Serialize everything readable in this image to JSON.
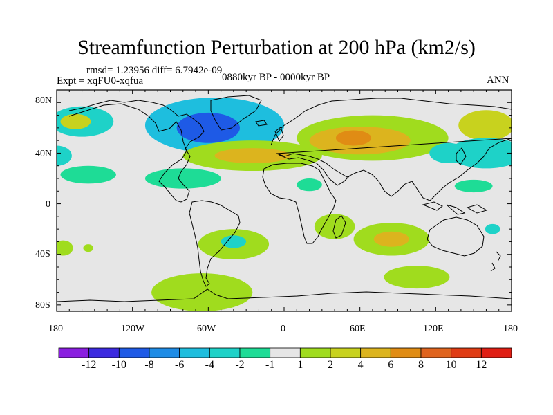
{
  "title": "Streamfunction Perturbation at 200 hPa (km2/s)",
  "stats": "rmsd= 1.23956 diff= 6.7942e-09",
  "experiment": "Expt = xqFU0-xqfua",
  "period": "0880kyr BP - 0000kyr BP",
  "season": "ANN",
  "lat_ticks": [
    "80N",
    "40N",
    "0",
    "40S",
    "80S"
  ],
  "lon_ticks": [
    "180",
    "120W",
    "60W",
    "0",
    "60E",
    "120E",
    "180"
  ],
  "colorbar": {
    "labels": [
      "-12",
      "-10",
      "-8",
      "-6",
      "-4",
      "-2",
      "-1",
      "1",
      "2",
      "4",
      "6",
      "8",
      "10",
      "12"
    ],
    "colors": [
      "#8a1ee0",
      "#3c2ae0",
      "#1e5ae6",
      "#1e8ce6",
      "#1ebede",
      "#1ed2c8",
      "#1edc96",
      "#e6e6e6",
      "#a0dc1e",
      "#c8d21e",
      "#dcb41e",
      "#e08c14",
      "#e0641e",
      "#e03c14",
      "#e01e14"
    ]
  },
  "anomaly_fields": [
    {
      "name": "greenland-north-atlantic-low",
      "lon": -55,
      "lat": 62,
      "rlon": 55,
      "rlat": 22,
      "level": -3
    },
    {
      "name": "greenland-core",
      "lon": -60,
      "lat": 60,
      "rlon": 25,
      "rlat": 12,
      "level": -5
    },
    {
      "name": "alaska-low",
      "lon": -160,
      "lat": 65,
      "rlon": 25,
      "rlat": 12,
      "level": -2
    },
    {
      "name": "alaska-core",
      "lon": -165,
      "lat": 65,
      "rlon": 12,
      "rlat": 6,
      "level": 2
    },
    {
      "name": "atlantic-high",
      "lon": -25,
      "lat": 38,
      "rlon": 55,
      "rlat": 12,
      "level": 1
    },
    {
      "name": "atlantic-high-core",
      "lon": -25,
      "lat": 38,
      "rlon": 30,
      "rlat": 6,
      "level": 3
    },
    {
      "name": "eurasia-high",
      "lon": 70,
      "lat": 52,
      "rlon": 60,
      "rlat": 18,
      "level": 1
    },
    {
      "name": "eurasia-high-mid",
      "lon": 60,
      "lat": 50,
      "rlon": 40,
      "rlat": 11,
      "level": 3
    },
    {
      "name": "eurasia-high-core",
      "lon": 55,
      "lat": 52,
      "rlon": 14,
      "rlat": 6,
      "level": 4
    },
    {
      "name": "east-siberia-high",
      "lon": 160,
      "lat": 62,
      "rlon": 22,
      "rlat": 12,
      "level": 2
    },
    {
      "name": "pacific-low",
      "lon": 160,
      "lat": 40,
      "rlon": 30,
      "rlat": 12,
      "level": -2
    },
    {
      "name": "west-pacific-low",
      "lon": 130,
      "lat": 40,
      "rlon": 15,
      "rlat": 8,
      "level": -2
    },
    {
      "name": "west-atlantic-low",
      "lon": -180,
      "lat": 38,
      "rlon": 12,
      "rlat": 8,
      "level": -2
    },
    {
      "name": "east-pacific-low",
      "lon": -155,
      "lat": 23,
      "rlon": 22,
      "rlat": 7,
      "level": -1
    },
    {
      "name": "caribbean-low",
      "lon": -80,
      "lat": 20,
      "rlon": 30,
      "rlat": 8,
      "level": -1
    },
    {
      "name": "north-africa-low",
      "lon": 20,
      "lat": 15,
      "rlon": 10,
      "rlat": 5,
      "level": -1
    },
    {
      "name": "pacific-tropical-low",
      "lon": 150,
      "lat": 14,
      "rlon": 15,
      "rlat": 5,
      "level": -1
    },
    {
      "name": "south-atlantic-high",
      "lon": -40,
      "lat": -32,
      "rlon": 28,
      "rlat": 12,
      "level": 1
    },
    {
      "name": "south-atlantic-core",
      "lon": -40,
      "lat": -30,
      "rlon": 10,
      "rlat": 5,
      "level": -2
    },
    {
      "name": "southeast-pacific-high",
      "lon": -175,
      "lat": -35,
      "rlon": 8,
      "rlat": 6,
      "level": 1
    },
    {
      "name": "south-pacific-small",
      "lon": -155,
      "lat": -35,
      "rlon": 4,
      "rlat": 3,
      "level": 1
    },
    {
      "name": "madagascar-high",
      "lon": 40,
      "lat": -18,
      "rlon": 16,
      "rlat": 10,
      "level": 1
    },
    {
      "name": "indian-ocean-high",
      "lon": 85,
      "lat": -28,
      "rlon": 30,
      "rlat": 13,
      "level": 1
    },
    {
      "name": "indian-ocean-core",
      "lon": 85,
      "lat": -28,
      "rlon": 14,
      "rlat": 6,
      "level": 3
    },
    {
      "name": "south-indian-high",
      "lon": 105,
      "lat": -58,
      "rlon": 26,
      "rlat": 9,
      "level": 1
    },
    {
      "name": "southern-ocean-high",
      "lon": -65,
      "lat": -70,
      "rlon": 40,
      "rlat": 15,
      "level": 1
    },
    {
      "name": "new-zealand-low",
      "lon": 165,
      "lat": -20,
      "rlon": 6,
      "rlat": 4,
      "level": -2
    }
  ]
}
